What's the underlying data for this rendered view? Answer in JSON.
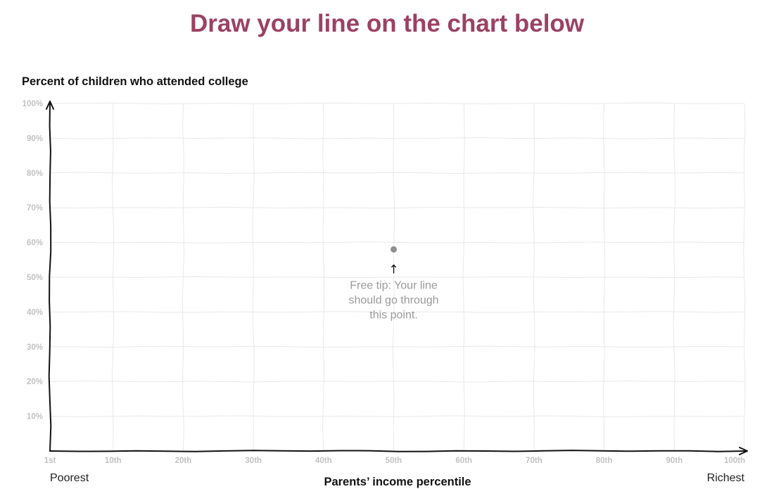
{
  "headline": "Draw your line on the chart below",
  "chart_data": {
    "type": "line",
    "ylabel": "Percent of children who attended college",
    "xlabel": "Parents’ income percentile",
    "xlim": [
      1,
      100
    ],
    "ylim": [
      0,
      100
    ],
    "x_ticks": [
      1,
      10,
      20,
      30,
      40,
      50,
      60,
      70,
      80,
      90,
      100
    ],
    "x_tick_labels": [
      "1st",
      "10th",
      "20th",
      "30th",
      "40th",
      "50th",
      "60th",
      "70th",
      "80th",
      "90th",
      "100th"
    ],
    "y_ticks": [
      10,
      20,
      30,
      40,
      50,
      60,
      70,
      80,
      90,
      100
    ],
    "y_tick_labels": [
      "10%",
      "20%",
      "30%",
      "40%",
      "50%",
      "60%",
      "70%",
      "80%",
      "90%",
      "100%"
    ],
    "x_end_labels": {
      "left": "Poorest",
      "right": "Richest"
    },
    "grid": true,
    "anchor_point": {
      "x": 50,
      "y": 58
    },
    "annotation": {
      "arrow": "↑",
      "lines": [
        "Free tip: Your line",
        "should go through",
        "this point."
      ]
    }
  },
  "colors": {
    "headline": "#9b4263",
    "axis": "#111111",
    "grid": "#e8e8e8",
    "tick_label": "#c2c2c2",
    "anchor_point": "#8f8f8f",
    "annotation": "#9a9a9a"
  }
}
